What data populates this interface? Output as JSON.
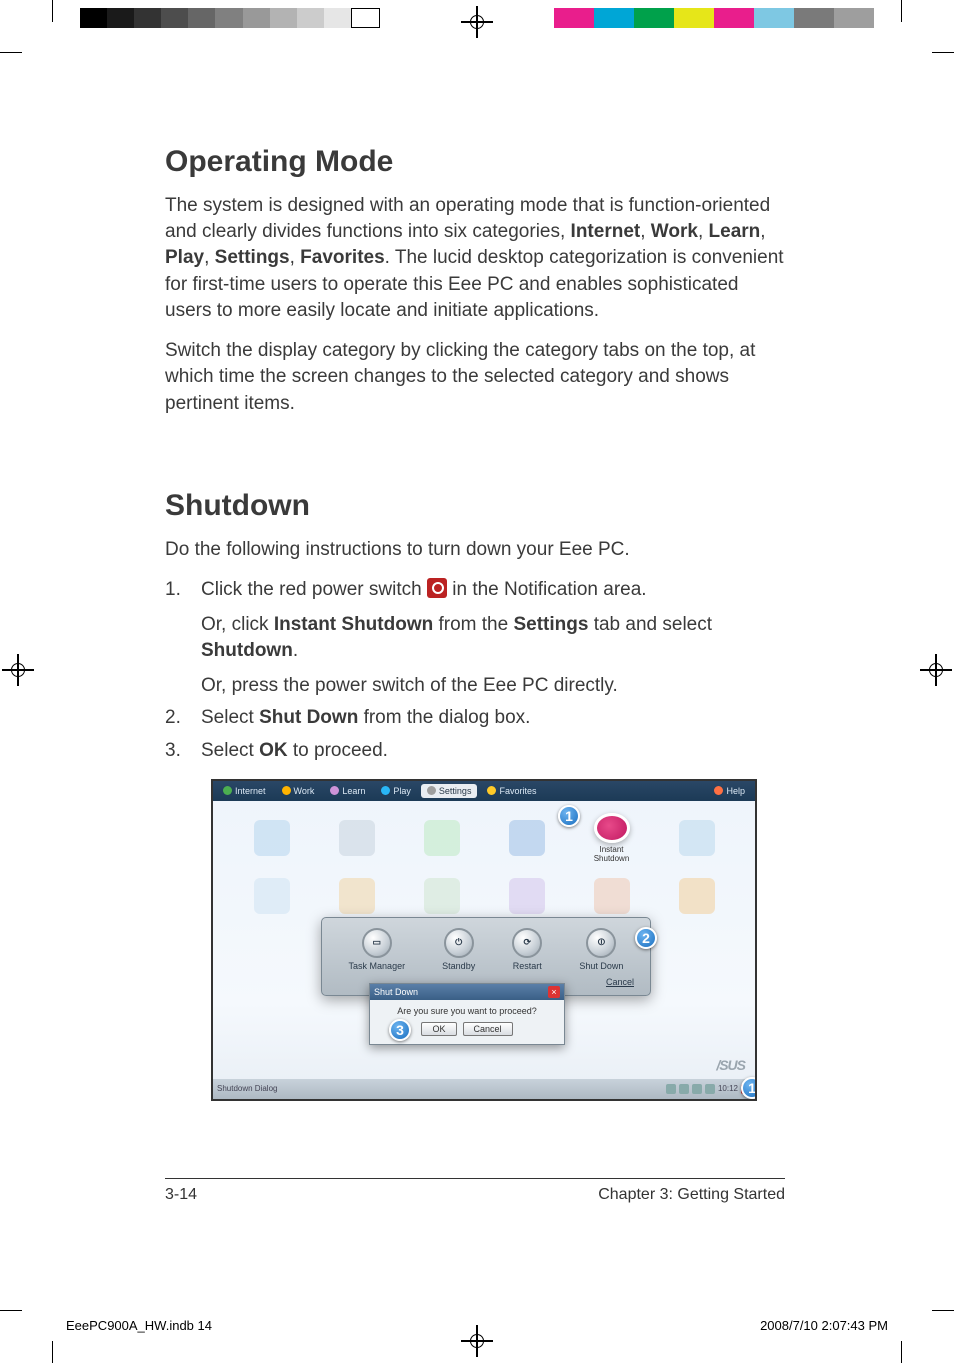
{
  "print": {
    "gray_bar": [
      "#000000",
      "#1a1a1a",
      "#333333",
      "#4d4d4d",
      "#666666",
      "#808080",
      "#999999",
      "#b3b3b3",
      "#cccccc",
      "#e6e6e6",
      "#ffffff"
    ],
    "hue_bar": [
      "#e91e8c",
      "#00a6d6",
      "#00a14b",
      "#e6e619",
      "#e91e8c",
      "#7ec8e3",
      "#7a7a7a",
      "#9e9e9e"
    ],
    "slug_file": "EeePC900A_HW.indb   14",
    "slug_time": "2008/7/10   2:07:43 PM"
  },
  "section1": {
    "heading": "Operating Mode",
    "p1_a": "The system is designed with an operating mode that is function-oriented and clearly divides functions into six categories, ",
    "b1": "Internet",
    "s1": ", ",
    "b2": "Work",
    "s2": ", ",
    "b3": "Learn",
    "s3": ", ",
    "b4": "Play",
    "s4": ", ",
    "b5": "Settings",
    "s5": ", ",
    "b6": "Favorites",
    "p1_b": ". The lucid desktop categorization is convenient for ﬁrst-time users to operate this Eee PC and enables sophisticated users to more easily locate and initiate applications.",
    "p2": "Switch the display category by clicking the category tabs on the top, at which time the screen changes to the selected category and shows pertinent items."
  },
  "section2": {
    "heading": "Shutdown",
    "intro": "Do the following instructions to turn down your Eee PC.",
    "step1_a": "Click the red power switch ",
    "step1_b": " in the Notiﬁcation area.",
    "step1_sub1_a": "Or, click ",
    "step1_sub1_b1": "Instant Shutdown",
    "step1_sub1_c": " from the ",
    "step1_sub1_b2": "Settings",
    "step1_sub1_d": " tab and select ",
    "step1_sub1_b3": "Shutdown",
    "step1_sub1_e": ".",
    "step1_sub2": "Or, press the power switch of the Eee PC directly.",
    "step2_a": "Select ",
    "step2_b": "Shut Down",
    "step2_c": " from the dialog box.",
    "step3_a": "Select ",
    "step3_b": "OK",
    "step3_c": " to proceed."
  },
  "shot": {
    "tabs": [
      "Internet",
      "Work",
      "Learn",
      "Play",
      "Settings",
      "Favorites"
    ],
    "help": "Help",
    "instant_label": "Instant\nShutdown",
    "panel": {
      "task": "Task Manager",
      "standby": "Standby",
      "restart": "Restart",
      "shutdown": "Shut Down",
      "cancel": "Cancel"
    },
    "confirm": {
      "title": "Shut Down",
      "msg": "Are you sure you want to proceed?",
      "ok": "OK",
      "cancel": "Cancel"
    },
    "taskbar": {
      "app": "Shutdown Dialog",
      "clock": "10:12"
    },
    "callouts": {
      "c1": "1",
      "c2": "2",
      "c3": "3",
      "c1b": "1"
    },
    "tab_icon_colors": [
      "#4caf50",
      "#ffb300",
      "#ce93d8",
      "#29b6f6",
      "#9e9e9e",
      "#ffca28",
      "#ff7043"
    ],
    "desk_colors": [
      "#b7d5ef",
      "#c9d4df",
      "#bdeac3",
      "#9fbfe5",
      "#e5a0c5",
      "#bcd8ec",
      "#cfe3f2",
      "#f0d6a6",
      "#cfe6cf",
      "#d4c4eb",
      "#efc9b2",
      "#f2cf9a"
    ]
  },
  "footer": {
    "page": "3-14",
    "chapter": "Chapter 3: Getting Started"
  }
}
